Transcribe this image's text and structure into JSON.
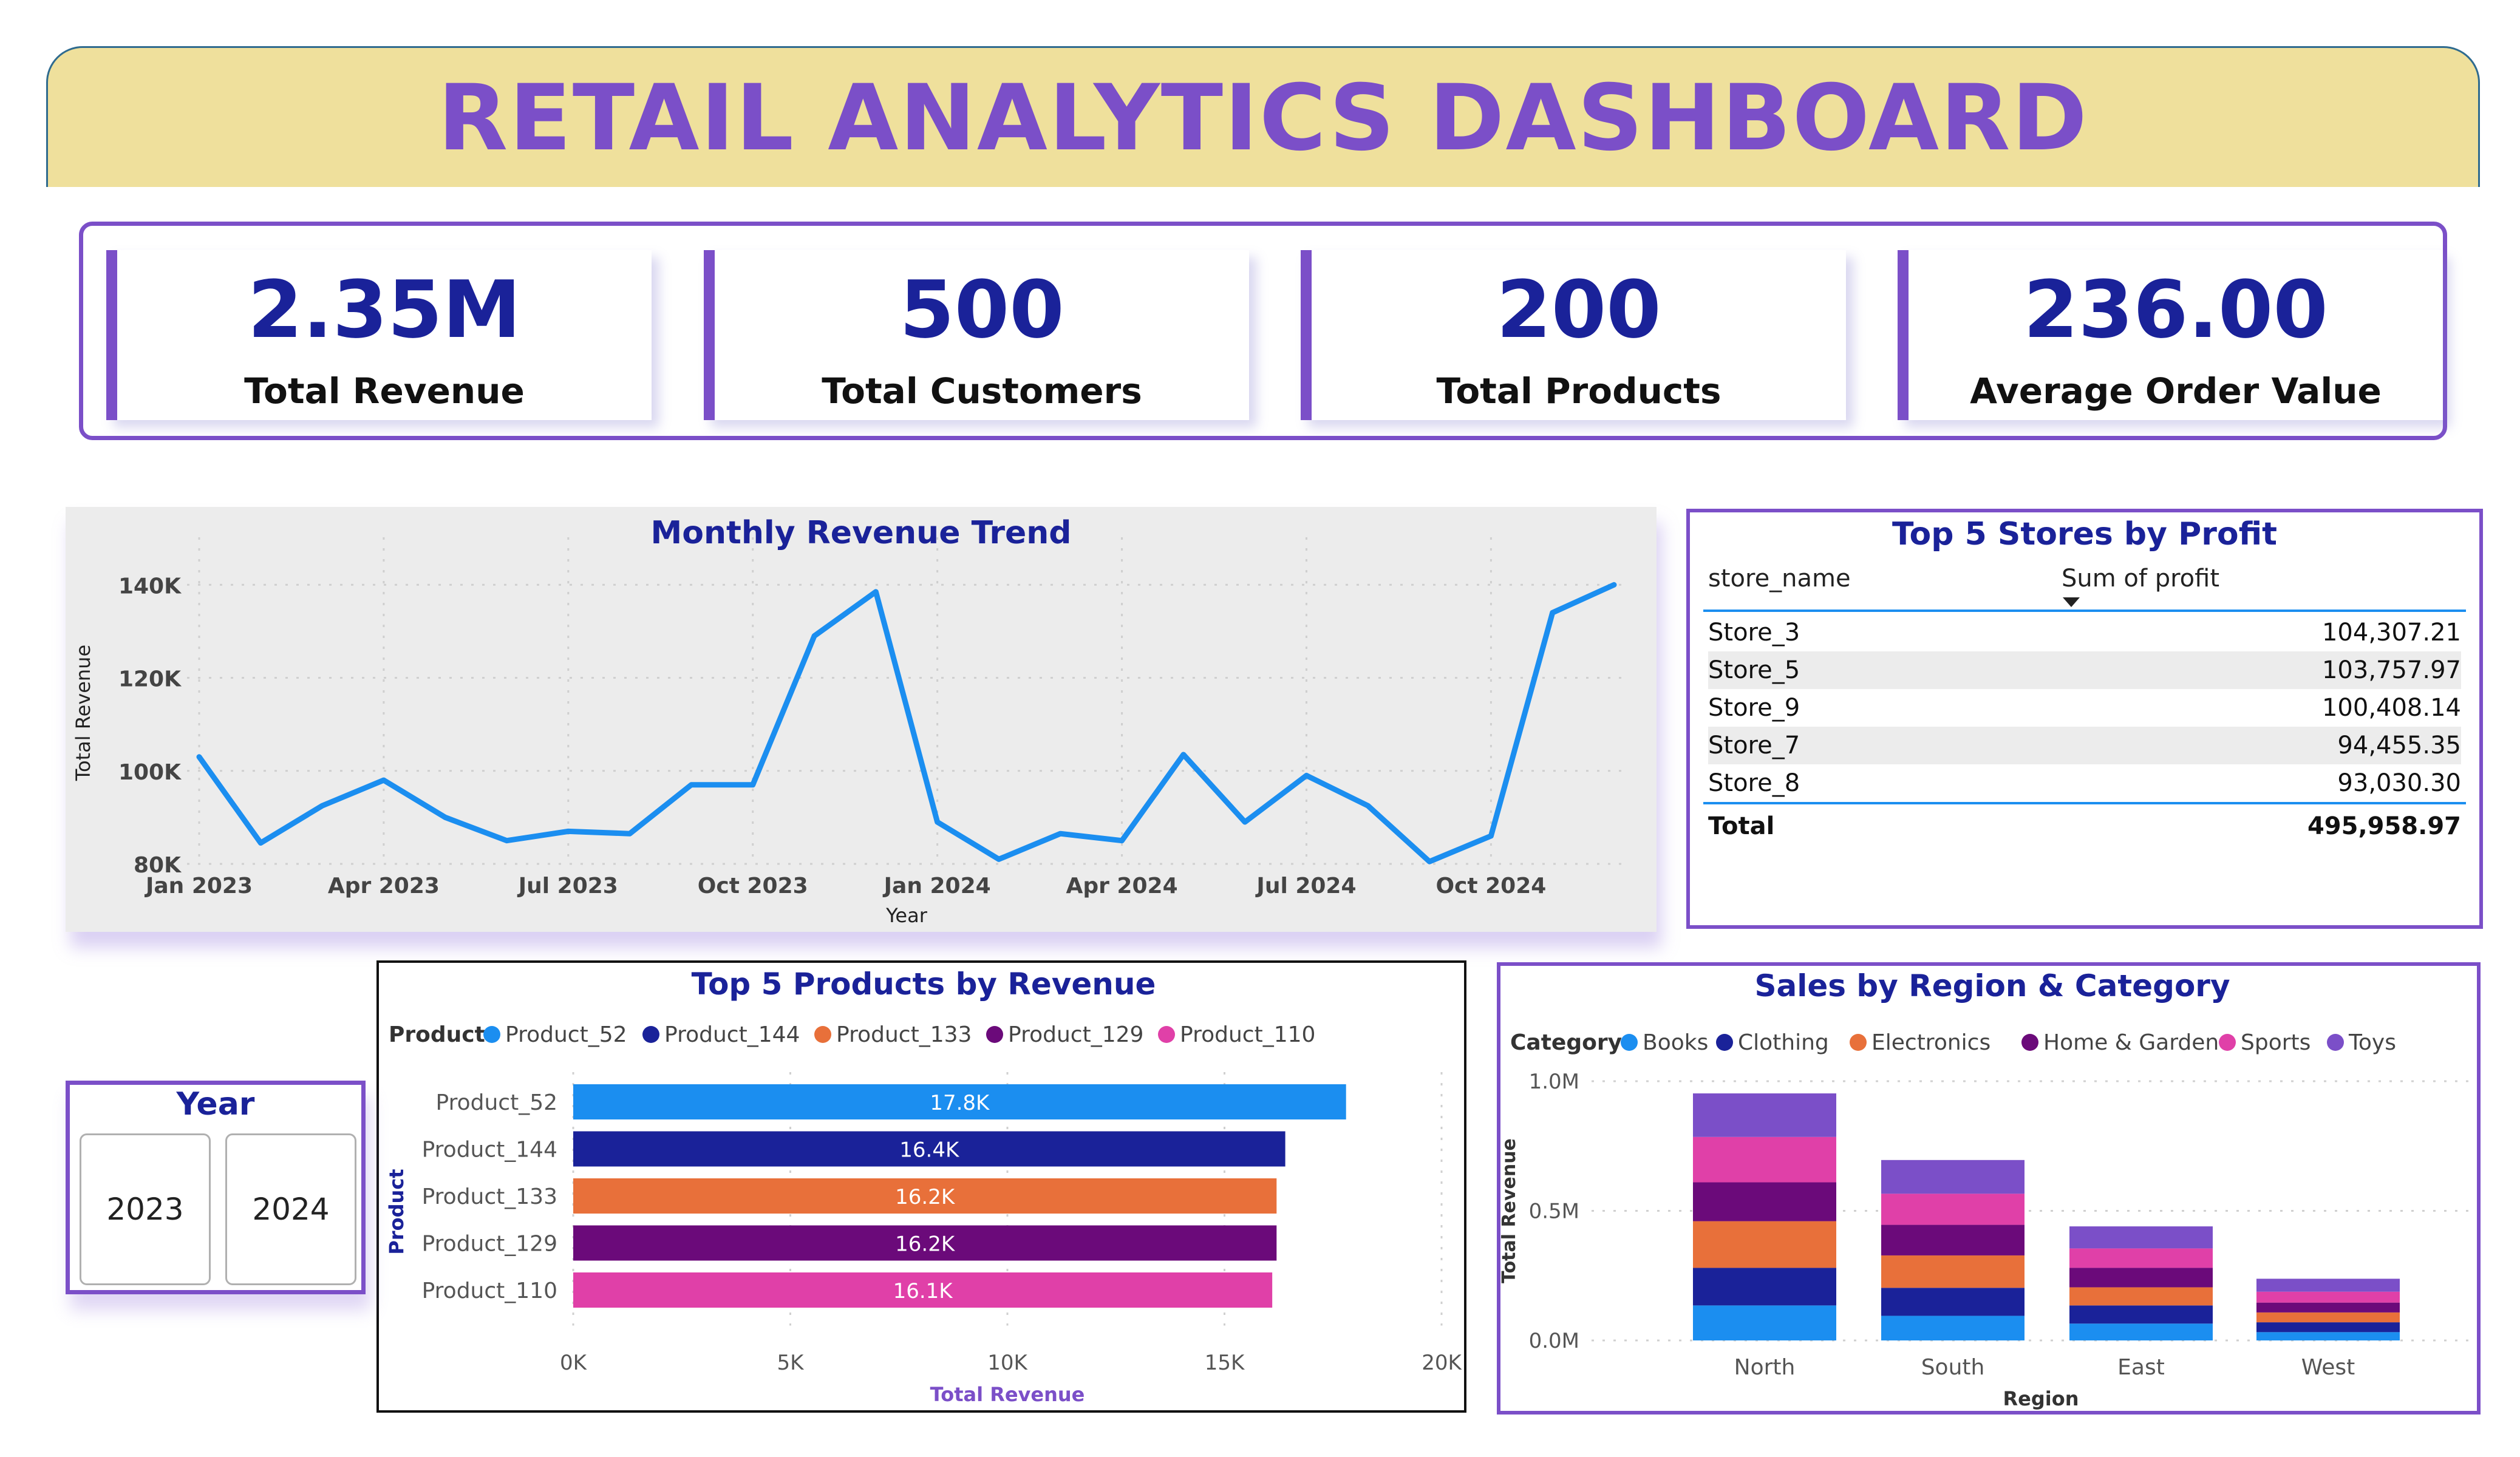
{
  "header": {
    "title": "RETAIL ANALYTICS DASHBOARD"
  },
  "kpis": [
    {
      "value": "2.35M",
      "label": "Total Revenue"
    },
    {
      "value": "500",
      "label": "Total Customers"
    },
    {
      "value": "200",
      "label": "Total Products"
    },
    {
      "value": "236.00",
      "label": "Average Order Value"
    }
  ],
  "colors": {
    "accent": "#7b4fc8",
    "navy": "#1a2299",
    "line": "#1b8ef0",
    "header_bg": "#efe09c"
  },
  "year_slicer": {
    "title": "Year",
    "options": [
      "2023",
      "2024"
    ]
  },
  "top_stores": {
    "title": "Top 5 Stores by Profit",
    "columns": [
      "store_name",
      "Sum of profit"
    ],
    "sort_icon": "sort-desc-icon",
    "rows": [
      {
        "store": "Store_3",
        "profit": "104,307.21"
      },
      {
        "store": "Store_5",
        "profit": "103,757.97"
      },
      {
        "store": "Store_9",
        "profit": "100,408.14"
      },
      {
        "store": "Store_7",
        "profit": "94,455.35"
      },
      {
        "store": "Store_8",
        "profit": "93,030.30"
      }
    ],
    "total_label": "Total",
    "total_value": "495,958.97"
  },
  "chart_data": [
    {
      "type": "line",
      "title": "Monthly Revenue Trend",
      "xlabel": "Year",
      "ylabel": "Total Revenue",
      "x": [
        "2023-01",
        "2023-02",
        "2023-03",
        "2023-04",
        "2023-05",
        "2023-06",
        "2023-07",
        "2023-08",
        "2023-09",
        "2023-10",
        "2023-11",
        "2023-12",
        "2024-01",
        "2024-02",
        "2024-03",
        "2024-04",
        "2024-05",
        "2024-06",
        "2024-07",
        "2024-08",
        "2024-09",
        "2024-10",
        "2024-11",
        "2024-12"
      ],
      "values": [
        103000,
        84500,
        92500,
        98000,
        90000,
        85000,
        87000,
        86500,
        97000,
        97000,
        129000,
        138500,
        89000,
        81000,
        86500,
        85000,
        103500,
        89000,
        99000,
        92500,
        80500,
        86000,
        134000,
        140000
      ],
      "x_ticks": [
        "Jan 2023",
        "Apr 2023",
        "Jul 2023",
        "Oct 2023",
        "Jan 2024",
        "Apr 2024",
        "Jul 2024",
        "Oct 2024"
      ],
      "y_ticks": [
        "80K",
        "100K",
        "120K",
        "140K"
      ],
      "y_tick_values": [
        80000,
        100000,
        120000,
        140000
      ],
      "ylim": [
        80000,
        145000
      ],
      "grid": true,
      "color": "#1b8ef0"
    },
    {
      "type": "bar",
      "orientation": "horizontal",
      "title": "Top 5 Products by Revenue",
      "xlabel": "Total Revenue",
      "ylabel": "Product",
      "legend_title": "Product",
      "legend_position": "top-left",
      "categories": [
        "Product_52",
        "Product_144",
        "Product_133",
        "Product_129",
        "Product_110"
      ],
      "values": [
        17800,
        16400,
        16200,
        16200,
        16100
      ],
      "data_labels": [
        "17.8K",
        "16.4K",
        "16.2K",
        "16.2K",
        "16.1K"
      ],
      "colors": [
        "#1b8ef0",
        "#1a2299",
        "#e8703a",
        "#6b0a7a",
        "#e040a8"
      ],
      "x_ticks": [
        "0K",
        "5K",
        "10K",
        "15K",
        "20K"
      ],
      "x_tick_values": [
        0,
        5000,
        10000,
        15000,
        20000
      ],
      "xlim": [
        0,
        20000
      ],
      "grid": true
    },
    {
      "type": "bar",
      "stacked": true,
      "title": "Sales by Region & Category",
      "xlabel": "Region",
      "ylabel": "Total Revenue",
      "legend_title": "Category",
      "legend_position": "top-left",
      "categories": [
        "North",
        "South",
        "East",
        "West"
      ],
      "series": [
        {
          "name": "Books",
          "color": "#1b8ef0",
          "values": [
            135000,
            95000,
            65000,
            32000
          ]
        },
        {
          "name": "Clothing",
          "color": "#1a2299",
          "values": [
            145000,
            108000,
            70000,
            38000
          ]
        },
        {
          "name": "Electronics",
          "color": "#e8703a",
          "values": [
            180000,
            125000,
            70000,
            38000
          ]
        },
        {
          "name": "Home & Garden",
          "color": "#6b0a7a",
          "values": [
            150000,
            118000,
            75000,
            38000
          ]
        },
        {
          "name": "Sports",
          "color": "#e040a8",
          "values": [
            175000,
            120000,
            75000,
            42000
          ]
        },
        {
          "name": "Toys",
          "color": "#7b4fc8",
          "values": [
            168000,
            130000,
            85000,
            50000
          ]
        }
      ],
      "y_ticks": [
        "0.0M",
        "0.5M",
        "1.0M"
      ],
      "y_tick_values": [
        0,
        500000,
        1000000
      ],
      "ylim": [
        0,
        1000000
      ],
      "grid": true
    }
  ]
}
